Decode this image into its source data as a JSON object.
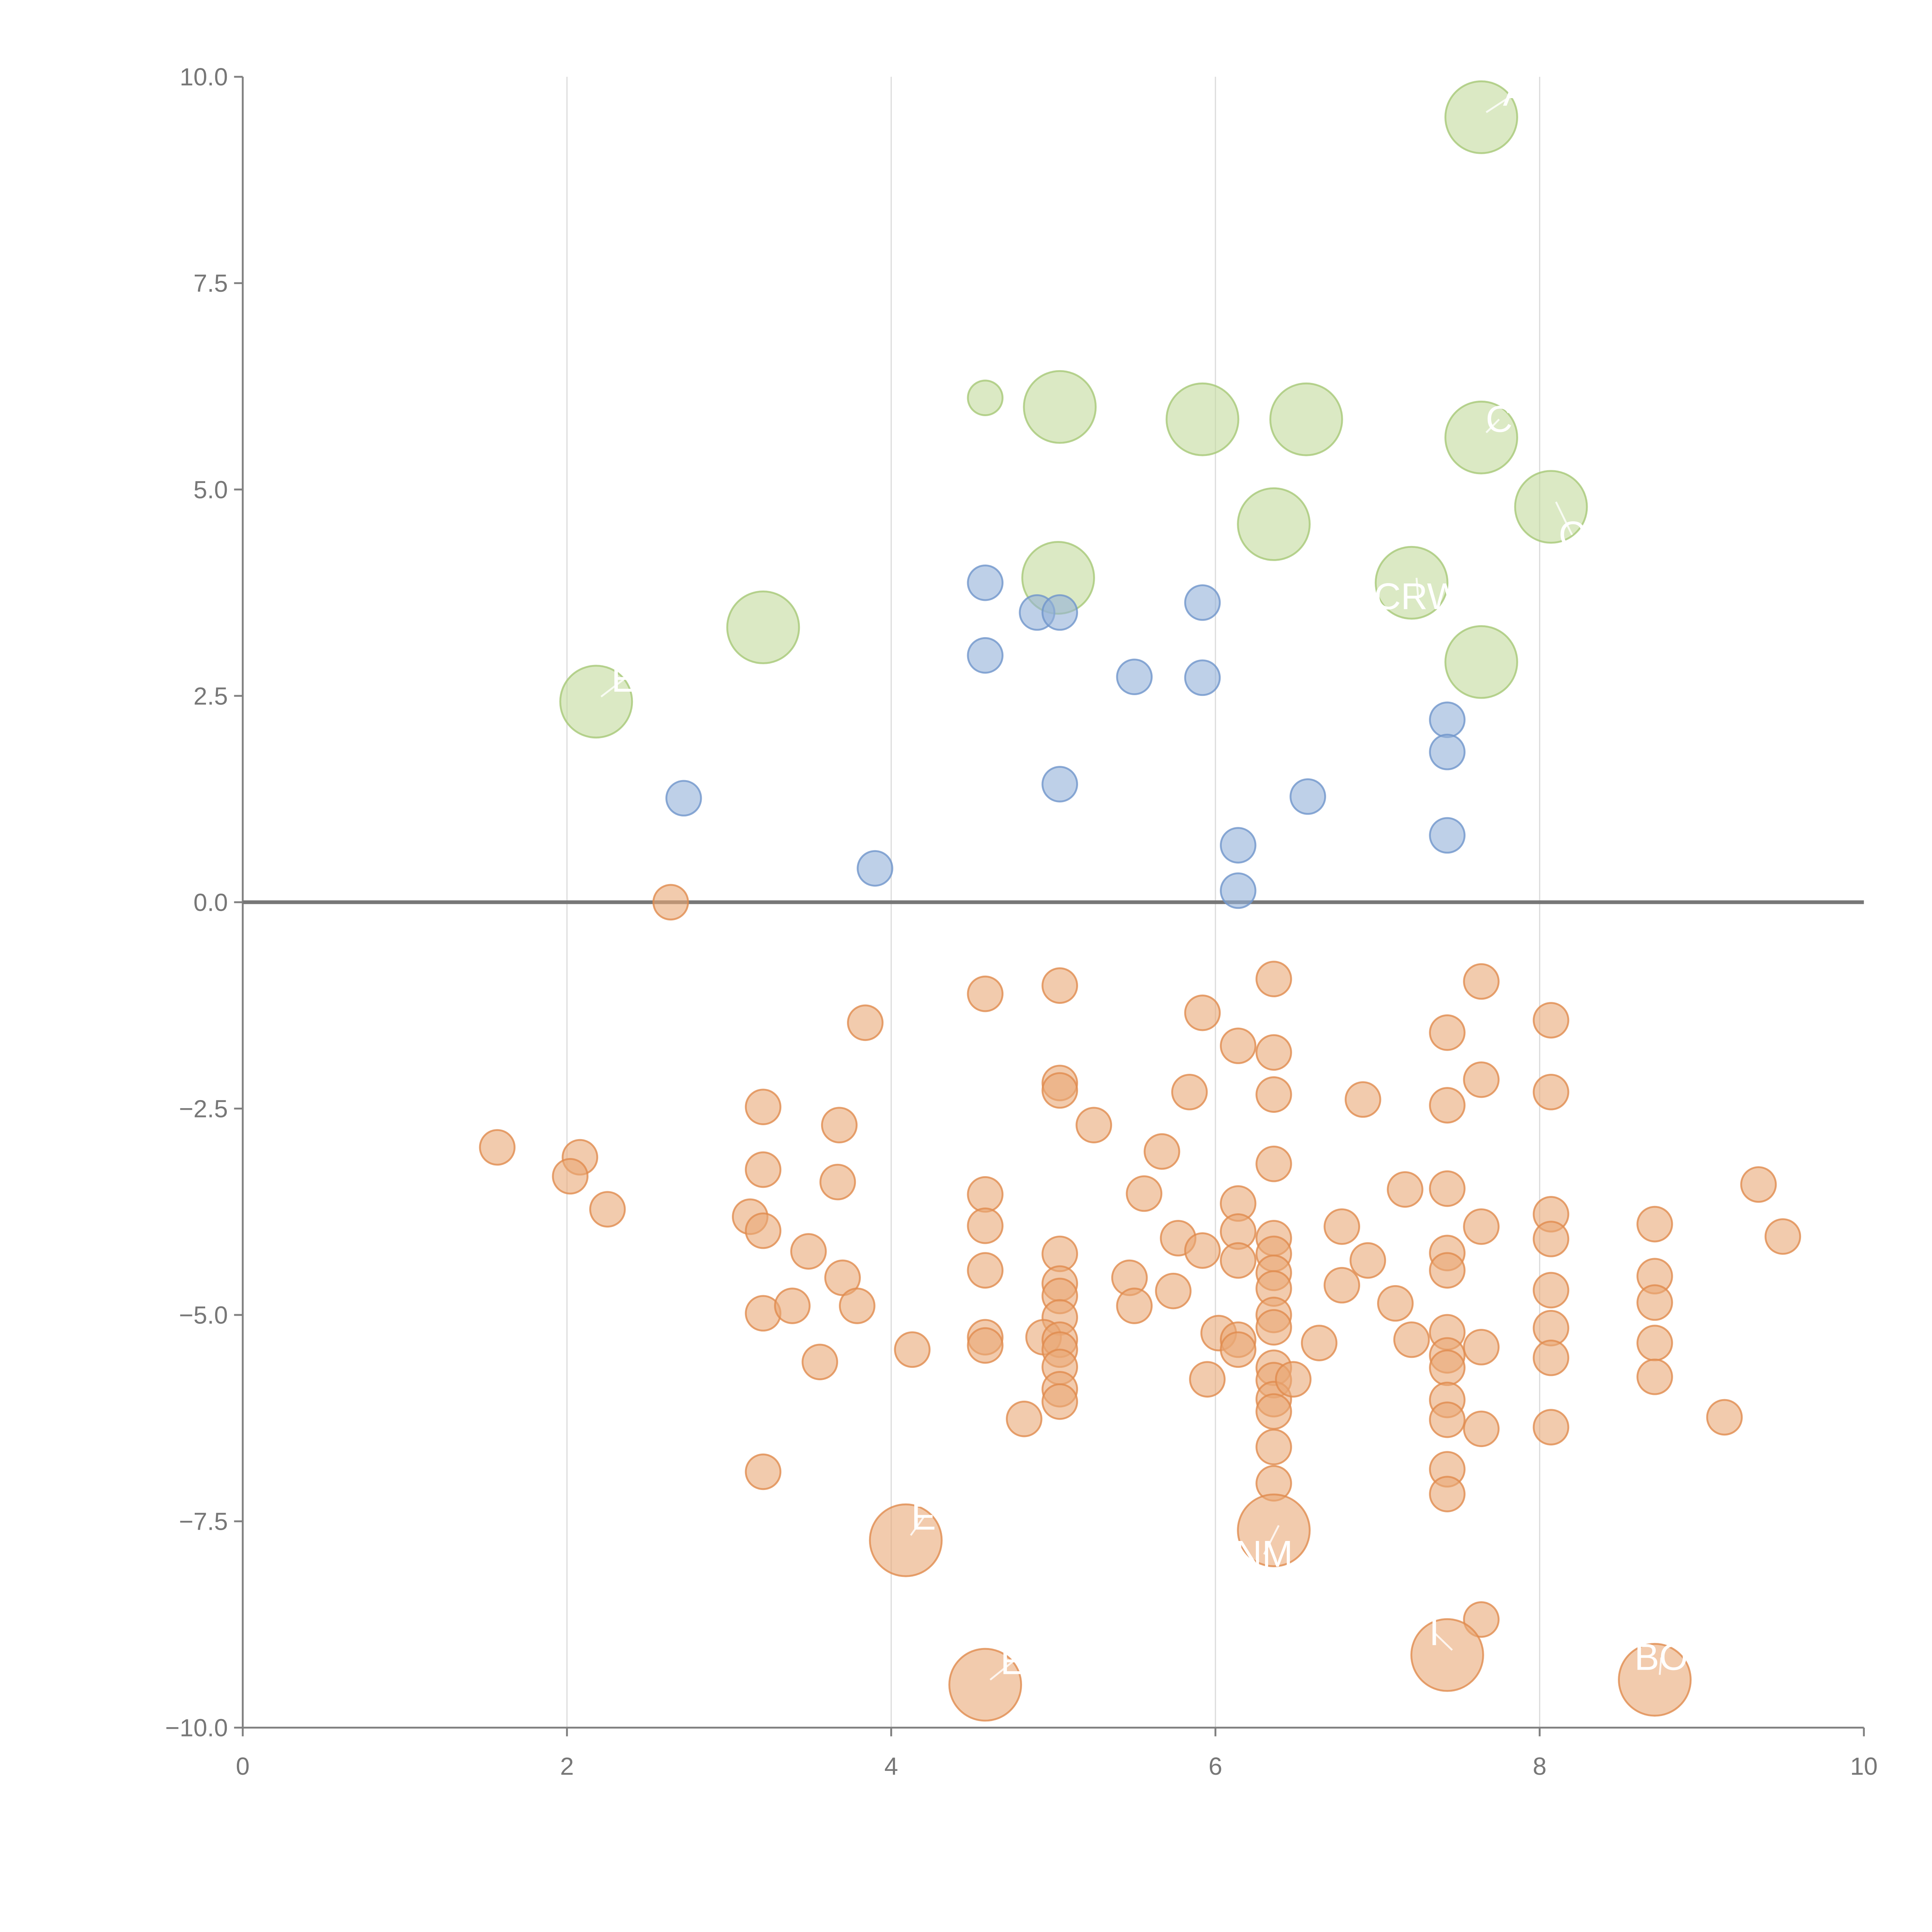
{
  "chart_data": {
    "type": "scatter",
    "title": "",
    "xlabel": "",
    "ylabel": "",
    "xlim": [
      0,
      10
    ],
    "ylim": [
      -10,
      10
    ],
    "grid": "vertical lines at x ticks",
    "x_ticks": [
      "0",
      "2",
      "4",
      "6",
      "8",
      "10"
    ],
    "x_tick_values": [
      0,
      2,
      4,
      6,
      8,
      10
    ],
    "y_ticks": [
      "10.0",
      "7.5",
      "5.0",
      "2.5",
      "0.0",
      "−2.5",
      "−5.0",
      "−7.5",
      "−10.0"
    ],
    "y_tick_values": [
      10,
      7.5,
      5,
      2.5,
      0,
      -2.5,
      -5,
      -7.5,
      -10
    ],
    "series": [
      {
        "name": "green",
        "color": "#c3da9c",
        "stroke": "#a6c877",
        "points_large": [
          [
            7.64,
            9.51
          ],
          [
            5.04,
            6.0
          ],
          [
            5.92,
            5.85
          ],
          [
            6.56,
            5.85
          ],
          [
            7.64,
            5.63
          ],
          [
            8.07,
            4.79
          ],
          [
            6.36,
            4.58
          ],
          [
            5.03,
            3.93
          ],
          [
            7.21,
            3.87
          ],
          [
            3.21,
            3.33
          ],
          [
            7.64,
            2.91
          ],
          [
            2.18,
            2.43
          ]
        ],
        "points_small": [
          [
            4.58,
            6.11
          ]
        ]
      },
      {
        "name": "blue",
        "color": "#92b0d8",
        "stroke": "#6f95cb",
        "points_large": [],
        "points_small": [
          [
            4.58,
            3.87
          ],
          [
            4.9,
            3.51
          ],
          [
            5.04,
            3.51
          ],
          [
            5.92,
            3.63
          ],
          [
            4.58,
            2.99
          ],
          [
            5.5,
            2.73
          ],
          [
            5.92,
            2.72
          ],
          [
            7.43,
            2.21
          ],
          [
            7.43,
            1.82
          ],
          [
            2.72,
            1.26
          ],
          [
            5.04,
            1.43
          ],
          [
            6.57,
            1.28
          ],
          [
            6.14,
            0.69
          ],
          [
            7.43,
            0.81
          ],
          [
            3.9,
            0.41
          ],
          [
            6.14,
            0.14
          ]
        ]
      },
      {
        "name": "orange",
        "color": "#eaa877",
        "stroke": "#e08b4d",
        "points_large": [
          [
            4.09,
            -7.73
          ],
          [
            6.36,
            -7.61
          ],
          [
            4.58,
            -9.48
          ],
          [
            7.43,
            -9.12
          ],
          [
            8.71,
            -9.42
          ]
        ],
        "points_small": [
          [
            2.64,
            0
          ],
          [
            1.57,
            -2.97
          ],
          [
            2.08,
            -3.09
          ],
          [
            2.02,
            -3.32
          ],
          [
            2.25,
            -3.72
          ],
          [
            3.21,
            -2.48
          ],
          [
            3.21,
            -3.24
          ],
          [
            3.13,
            -3.81
          ],
          [
            3.21,
            -3.98
          ],
          [
            3.21,
            -4.98
          ],
          [
            3.21,
            -6.9
          ],
          [
            3.68,
            -2.7
          ],
          [
            3.67,
            -3.39
          ],
          [
            3.84,
            -1.46
          ],
          [
            3.49,
            -4.23
          ],
          [
            3.7,
            -4.55
          ],
          [
            3.39,
            -4.89
          ],
          [
            3.79,
            -4.89
          ],
          [
            3.56,
            -5.57
          ],
          [
            4.13,
            -5.42
          ],
          [
            4.58,
            -1.11
          ],
          [
            4.58,
            -3.54
          ],
          [
            4.58,
            -3.92
          ],
          [
            4.58,
            -4.46
          ],
          [
            4.58,
            -5.27
          ],
          [
            4.58,
            -5.37
          ],
          [
            4.82,
            -6.26
          ],
          [
            5.04,
            -1.01
          ],
          [
            5.04,
            -2.19
          ],
          [
            5.04,
            -2.28
          ],
          [
            5.25,
            -2.7
          ],
          [
            5.04,
            -4.26
          ],
          [
            5.04,
            -4.62
          ],
          [
            5.04,
            -4.77
          ],
          [
            5.04,
            -5.03
          ],
          [
            4.94,
            -5.27
          ],
          [
            5.04,
            -5.3
          ],
          [
            5.04,
            -5.42
          ],
          [
            5.04,
            -5.63
          ],
          [
            5.04,
            -5.9
          ],
          [
            5.04,
            -6.05
          ],
          [
            5.67,
            -3.02
          ],
          [
            5.56,
            -3.53
          ],
          [
            5.77,
            -4.07
          ],
          [
            5.47,
            -4.55
          ],
          [
            5.5,
            -4.89
          ],
          [
            5.74,
            -4.71
          ],
          [
            5.92,
            -4.22
          ],
          [
            5.92,
            -1.34
          ],
          [
            5.84,
            -2.3
          ],
          [
            5.95,
            -5.78
          ],
          [
            6.02,
            -5.22
          ],
          [
            6.14,
            -1.74
          ],
          [
            6.14,
            -3.65
          ],
          [
            6.14,
            -3.99
          ],
          [
            6.14,
            -4.34
          ],
          [
            6.14,
            -5.3
          ],
          [
            6.14,
            -5.42
          ],
          [
            6.36,
            -0.93
          ],
          [
            6.36,
            -1.82
          ],
          [
            6.36,
            -2.33
          ],
          [
            6.36,
            -3.17
          ],
          [
            6.36,
            -4.07
          ],
          [
            6.36,
            -4.26
          ],
          [
            6.36,
            -4.49
          ],
          [
            6.36,
            -4.68
          ],
          [
            6.36,
            -5.0
          ],
          [
            6.36,
            -5.15
          ],
          [
            6.36,
            -5.64
          ],
          [
            6.36,
            -5.79
          ],
          [
            6.36,
            -6.02
          ],
          [
            6.36,
            -6.17
          ],
          [
            6.36,
            -6.6
          ],
          [
            6.36,
            -7.04
          ],
          [
            6.48,
            -5.78
          ],
          [
            6.64,
            -5.34
          ],
          [
            6.78,
            -3.93
          ],
          [
            6.78,
            -4.64
          ],
          [
            6.91,
            -2.39
          ],
          [
            6.94,
            -4.34
          ],
          [
            7.11,
            -4.86
          ],
          [
            7.17,
            -3.48
          ],
          [
            7.21,
            -5.3
          ],
          [
            7.43,
            -1.58
          ],
          [
            7.43,
            -2.46
          ],
          [
            7.43,
            -3.47
          ],
          [
            7.43,
            -4.25
          ],
          [
            7.43,
            -4.46
          ],
          [
            7.43,
            -5.21
          ],
          [
            7.43,
            -5.49
          ],
          [
            7.43,
            -5.64
          ],
          [
            7.43,
            -6.03
          ],
          [
            7.43,
            -6.27
          ],
          [
            7.43,
            -6.87
          ],
          [
            7.43,
            -7.17
          ],
          [
            7.64,
            -0.96
          ],
          [
            7.64,
            -2.15
          ],
          [
            7.64,
            -3.93
          ],
          [
            7.64,
            -5.39
          ],
          [
            7.64,
            -6.38
          ],
          [
            7.64,
            -8.69
          ],
          [
            8.07,
            -1.43
          ],
          [
            8.07,
            -2.3
          ],
          [
            8.07,
            -3.78
          ],
          [
            8.07,
            -4.08
          ],
          [
            8.07,
            -4.7
          ],
          [
            8.07,
            -5.16
          ],
          [
            8.07,
            -5.52
          ],
          [
            8.07,
            -6.36
          ],
          [
            8.71,
            -3.9
          ],
          [
            8.71,
            -4.53
          ],
          [
            8.71,
            -4.85
          ],
          [
            8.71,
            -5.34
          ],
          [
            8.71,
            -5.75
          ],
          [
            9.14,
            -6.24
          ],
          [
            9.35,
            -3.42
          ],
          [
            9.5,
            -4.05
          ]
        ]
      }
    ],
    "annotations": [
      {
        "text": "A",
        "x": 7.64,
        "y": 9.51,
        "tx": 7.85,
        "ty": 9.8
      },
      {
        "text": "C",
        "x": 7.64,
        "y": 5.63,
        "tx": 7.75,
        "ty": 5.85
      },
      {
        "text": "C",
        "x": 8.07,
        "y": 4.79,
        "tx": 8.2,
        "ty": 4.45
      },
      {
        "text": "CRW",
        "x": 7.21,
        "y": 3.87,
        "tx": 7.25,
        "ty": 3.7
      },
      {
        "text": "E",
        "x": 2.18,
        "y": 2.43,
        "tx": 2.35,
        "ty": 2.7
      },
      {
        "text": "E",
        "x": 4.09,
        "y": -7.73,
        "tx": 4.2,
        "ty": -7.45
      },
      {
        "text": "NM",
        "x": 6.36,
        "y": -7.61,
        "tx": 6.3,
        "ty": -7.9
      },
      {
        "text": "BO",
        "x": 8.71,
        "y": -9.42,
        "tx": 8.75,
        "ty": -9.15
      },
      {
        "text": "E",
        "x": 4.58,
        "y": -9.48,
        "tx": 4.75,
        "ty": -9.2
      },
      {
        "text": "I",
        "x": 7.43,
        "y": -9.12,
        "tx": 7.35,
        "ty": -8.85
      }
    ]
  }
}
